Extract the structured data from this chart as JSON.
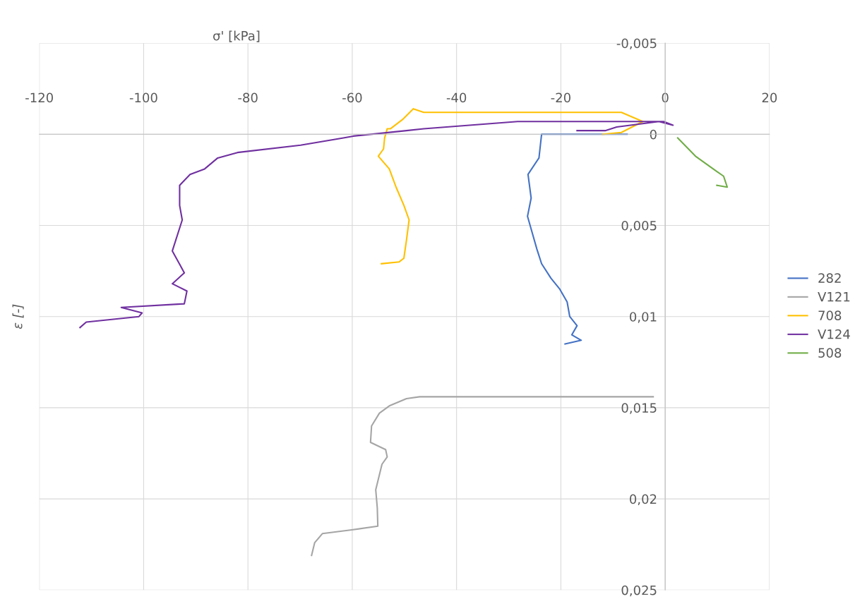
{
  "chart_data": {
    "type": "line",
    "xlabel": "σ' [kPa]",
    "ylabel": "ε [-]",
    "xlim": [
      -120,
      20
    ],
    "xticks": [
      -120,
      -100,
      -80,
      -60,
      -40,
      -20,
      0,
      20
    ],
    "ylim": [
      0.025,
      -0.005
    ],
    "yticks": [
      {
        "value": -0.005,
        "label": "-0,005"
      },
      {
        "value": 0,
        "label": "0"
      },
      {
        "value": 0.005,
        "label": "0,005"
      },
      {
        "value": 0.01,
        "label": "0,01"
      },
      {
        "value": 0.015,
        "label": "0,015"
      },
      {
        "value": 0.02,
        "label": "0,02"
      },
      {
        "value": 0.025,
        "label": "0,025"
      }
    ],
    "grid": true,
    "legend": "right",
    "marker": "none",
    "line_style": "solid",
    "series": [
      {
        "name": "282",
        "color": "#4472c4",
        "x": [
          -7.3,
          -23.7,
          -24.2,
          -26.3,
          -25.7,
          -26.4,
          -25.6,
          -24.6,
          -23.7,
          -21.9,
          -20.2,
          -18.8,
          -18.3,
          -16.9,
          -17.9,
          -16.1,
          -19.2
        ],
        "values": [
          0,
          0,
          0.0013,
          0.0022,
          0.0035,
          0.0045,
          0.0053,
          0.0063,
          0.0071,
          0.0079,
          0.0085,
          0.0092,
          0.01,
          0.0105,
          0.011,
          0.0113,
          0.0115
        ]
      },
      {
        "name": "V121",
        "color": "#a5a5a5",
        "x": [
          -2.3,
          -47.1,
          -49.6,
          -52.9,
          -54.8,
          -56.3,
          -56.5,
          -53.6,
          -53.3,
          -54.3,
          -55.5,
          -55.2,
          -55.1,
          -60.1,
          -65.7,
          -67.2,
          -67.8
        ],
        "values": [
          0.0144,
          0.0144,
          0.0145,
          0.0149,
          0.0153,
          0.016,
          0.0169,
          0.0173,
          0.0177,
          0.0181,
          0.0195,
          0.0205,
          0.0215,
          0.0217,
          0.0219,
          0.0224,
          0.0231
        ]
      },
      {
        "name": "708",
        "color": "#ffc000",
        "x": [
          -12.0,
          -8.4,
          -4.3,
          -8.4,
          -15.2,
          -46.3,
          -48.3,
          -50.4,
          -52.7,
          -53.3,
          -53.8,
          -54.0,
          -55.0,
          -52.9,
          -51.6,
          -50.1,
          -49.1,
          -49.6,
          -50.1,
          -51.0,
          -54.4
        ],
        "values": [
          0.0,
          -0.0001,
          -0.0007,
          -0.0012,
          -0.0012,
          -0.0012,
          -0.0014,
          -0.0008,
          -0.0003,
          -0.0003,
          0.0002,
          0.0008,
          0.0012,
          0.0019,
          0.0029,
          0.0039,
          0.0047,
          0.0058,
          0.0068,
          0.007,
          0.0071
        ]
      },
      {
        "name": "V124",
        "color": "#7030a0",
        "x": [
          -16.9,
          -11.5,
          -9.3,
          -1.2,
          1.5,
          -0.3,
          -5.7,
          -28.3,
          -46.3,
          -49.6,
          -59.8,
          -61.7,
          -69.9,
          -82.0,
          -85.8,
          -88.3,
          -91.1,
          -93.1,
          -93.1,
          -92.6,
          -94.5,
          -92.2,
          -94.5,
          -91.7,
          -92.2,
          -104.3,
          -100.3,
          -100.9,
          -111.0,
          -112.2
        ],
        "values": [
          -0.0002,
          -0.0002,
          -0.0004,
          -0.0007,
          -0.0005,
          -0.0007,
          -0.0007,
          -0.0007,
          -0.0003,
          -0.0002,
          0.0001,
          0.0002,
          0.0006,
          0.001,
          0.0013,
          0.0019,
          0.0022,
          0.0028,
          0.0039,
          0.0047,
          0.0064,
          0.0076,
          0.0082,
          0.0086,
          0.0093,
          0.0095,
          0.0098,
          0.01,
          0.0103,
          0.0106
        ]
      },
      {
        "name": "508",
        "color": "#70ad47",
        "x": [
          2.4,
          5.8,
          9.2,
          11.2,
          11.9,
          9.9
        ],
        "values": [
          0.0002,
          0.0012,
          0.0019,
          0.0023,
          0.0029,
          0.0028
        ]
      }
    ]
  }
}
